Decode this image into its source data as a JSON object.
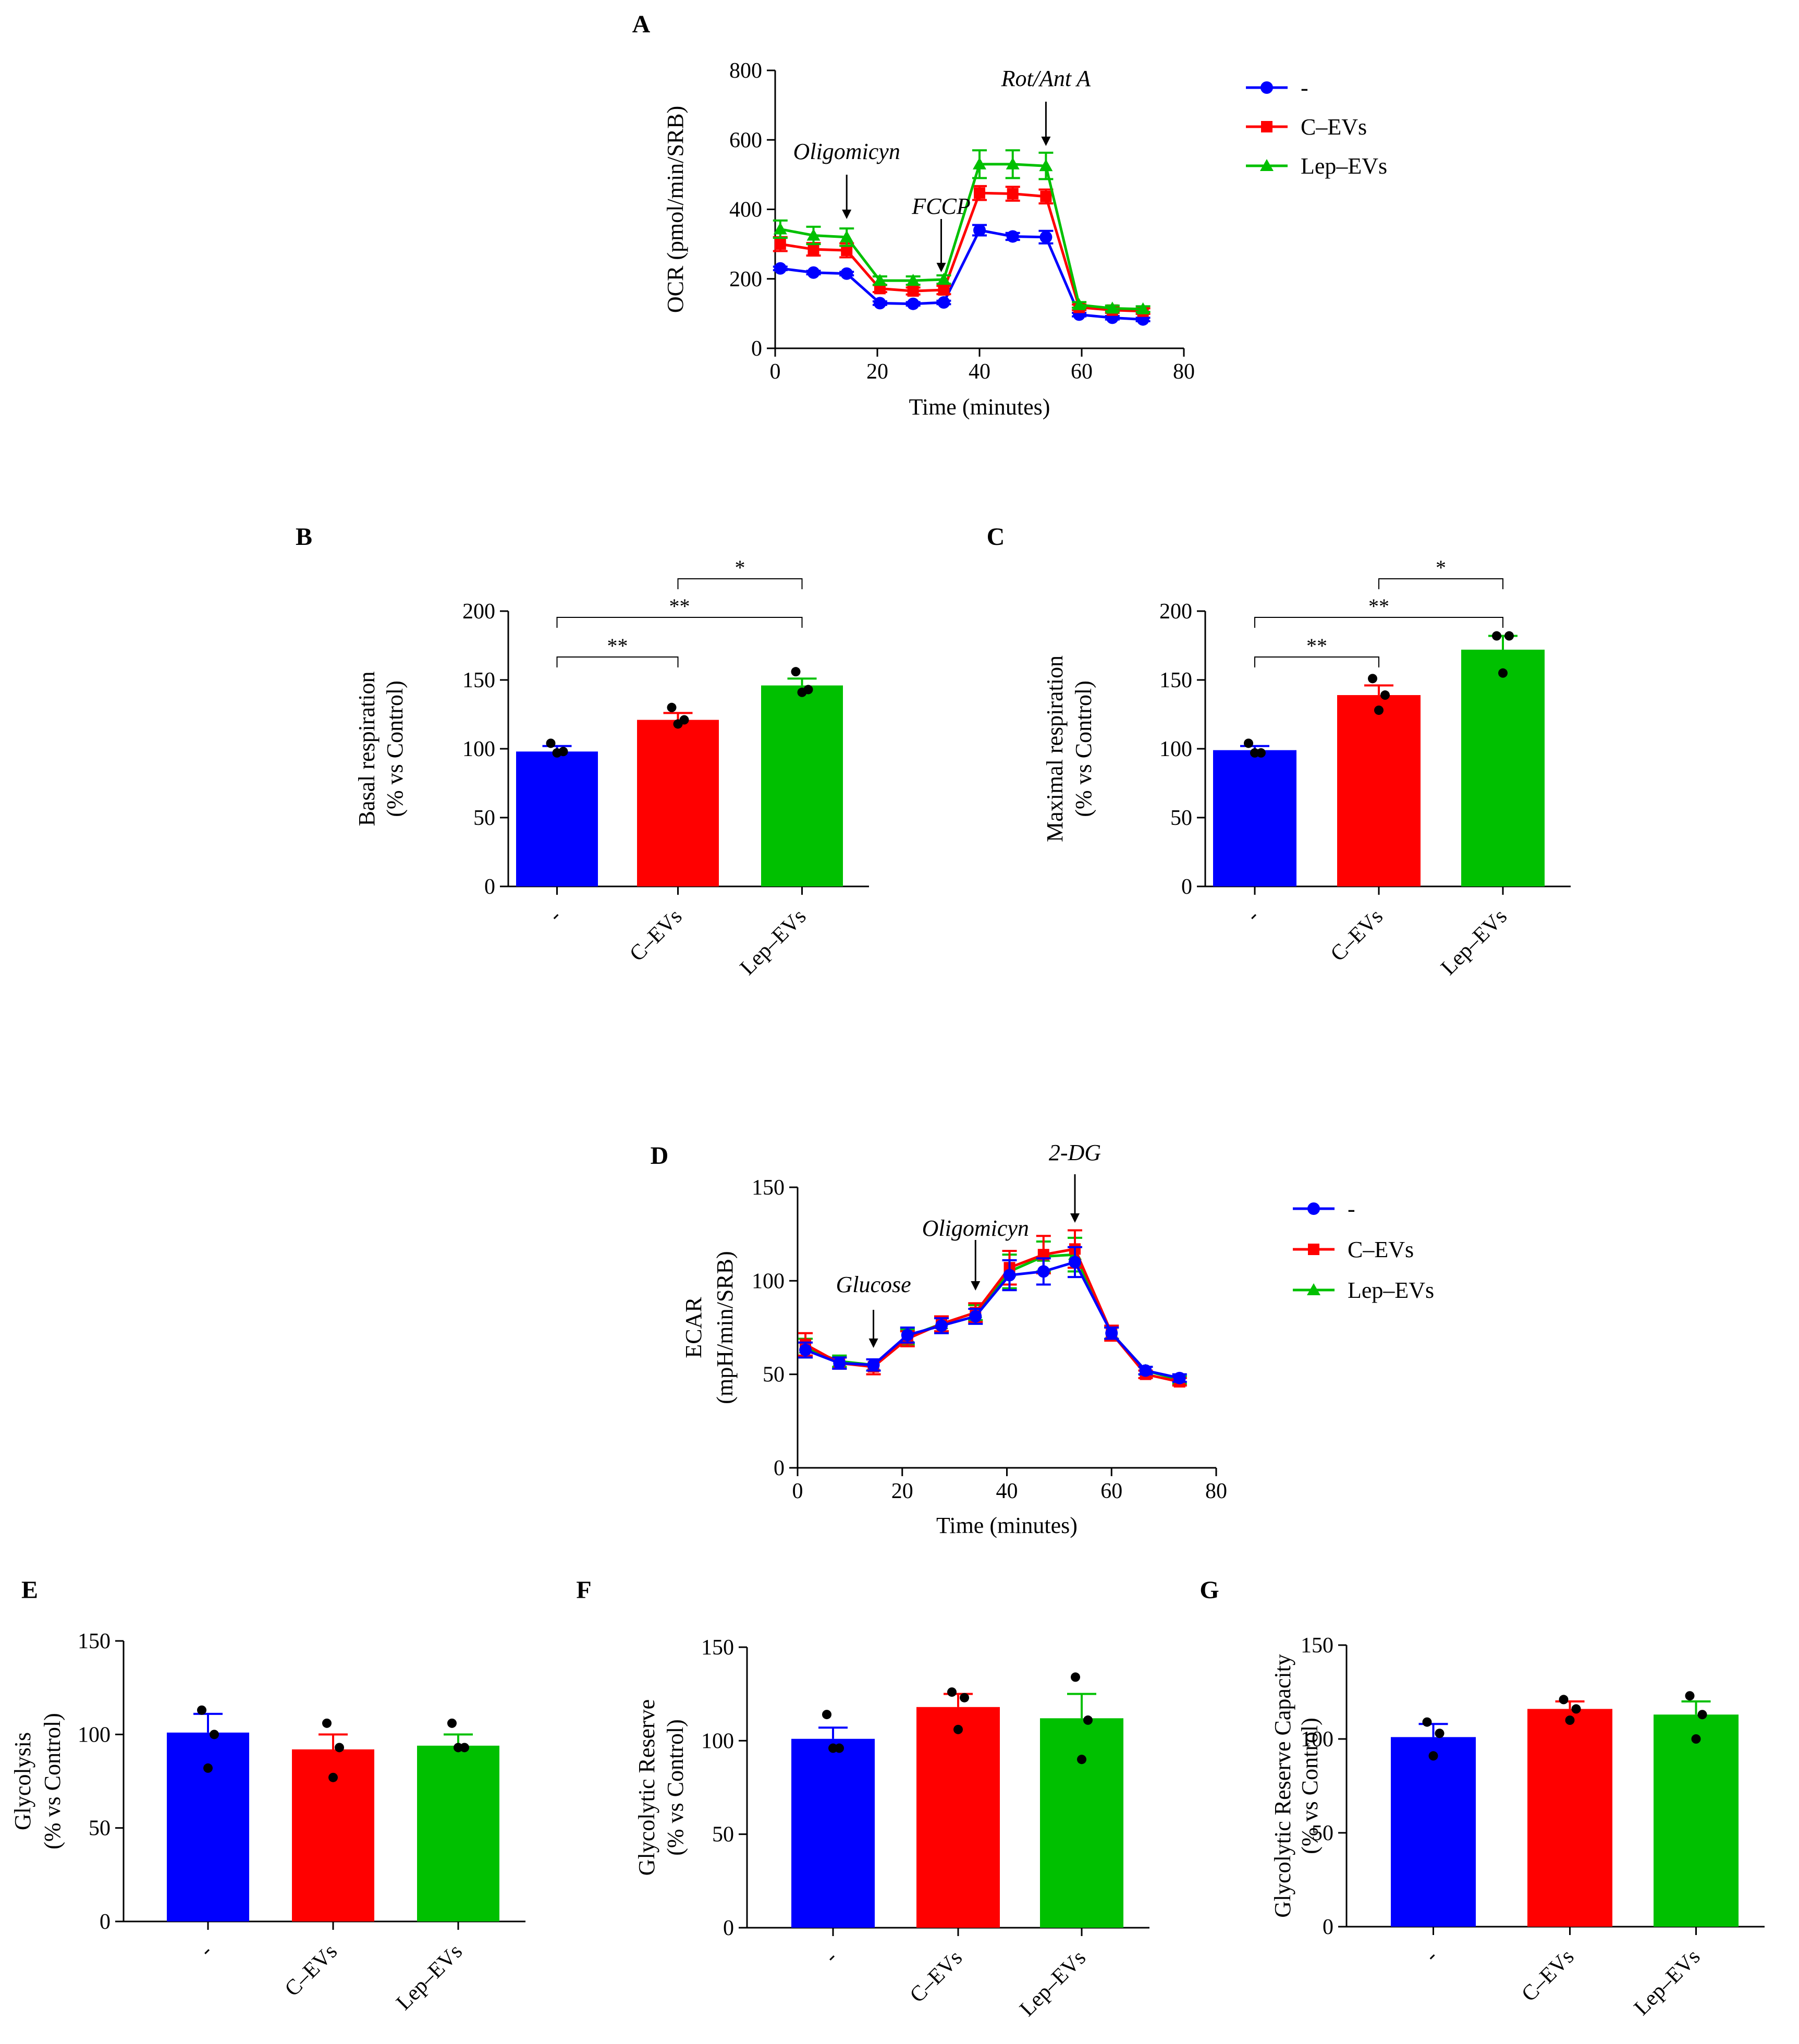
{
  "colors": {
    "control": "#0000FF",
    "cevs": "#FF0000",
    "lepevs": "#00C000",
    "axis": "#000000"
  },
  "chart_data": [
    {
      "id": "A",
      "panel_label": "A",
      "type": "line",
      "xlabel": "Time (minutes)",
      "ylabel": "OCR (pmol/min/SRB)",
      "xlim": [
        0,
        80
      ],
      "ylim": [
        0,
        800
      ],
      "xticks": [
        0,
        20,
        40,
        60,
        80
      ],
      "yticks": [
        0,
        200,
        400,
        600,
        800
      ],
      "x": [
        1,
        7.5,
        14,
        20.5,
        27,
        33,
        40,
        46.5,
        53,
        59.5,
        66,
        72
      ],
      "legend": [
        "-",
        "C–EVs",
        "Lep–EVs"
      ],
      "legend_position": "right",
      "series": [
        {
          "name": "-",
          "color_key": "control",
          "marker": "circle",
          "values": [
            230,
            218,
            215,
            130,
            128,
            132,
            340,
            322,
            320,
            97,
            88,
            83
          ],
          "errors": [
            5,
            5,
            5,
            5,
            5,
            5,
            15,
            10,
            18,
            5,
            5,
            5
          ]
        },
        {
          "name": "C–EVs",
          "color_key": "cevs",
          "marker": "square",
          "values": [
            300,
            285,
            282,
            172,
            165,
            168,
            447,
            445,
            437,
            118,
            110,
            107
          ],
          "errors": [
            20,
            18,
            20,
            10,
            10,
            12,
            20,
            20,
            20,
            8,
            8,
            8
          ]
        },
        {
          "name": "Lep–EVs",
          "color_key": "lepevs",
          "marker": "triangle",
          "values": [
            343,
            325,
            320,
            195,
            195,
            198,
            530,
            530,
            525,
            125,
            115,
            113
          ],
          "errors": [
            25,
            25,
            25,
            12,
            12,
            12,
            40,
            40,
            38,
            8,
            8,
            8
          ]
        }
      ],
      "annotations": [
        {
          "text": "Oligomicyn",
          "x": 14
        },
        {
          "text": "FCCP",
          "x": 32.5
        },
        {
          "text": "Rot/Ant A",
          "x": 53
        }
      ]
    },
    {
      "id": "B",
      "panel_label": "B",
      "type": "bar",
      "ylabel_lines": [
        "Basal respiration",
        "(% vs Control)"
      ],
      "categories": [
        "-",
        "C–EVs",
        "Lep–EVs"
      ],
      "ylim": [
        0,
        200
      ],
      "yticks": [
        0,
        50,
        100,
        150,
        200
      ],
      "values": [
        98,
        121,
        146
      ],
      "errors": [
        4,
        5,
        5
      ],
      "points": [
        [
          104,
          98,
          97
        ],
        [
          130,
          121,
          118
        ],
        [
          156,
          143,
          141
        ]
      ],
      "significance": [
        {
          "from": 0,
          "to": 1,
          "label": "**",
          "level": 0
        },
        {
          "from": 0,
          "to": 2,
          "label": "**",
          "level": 1
        },
        {
          "from": 1,
          "to": 2,
          "label": "*",
          "level": 2
        }
      ]
    },
    {
      "id": "C",
      "panel_label": "C",
      "type": "bar",
      "ylabel_lines": [
        "Maximal respiration",
        "(% vs Control)"
      ],
      "categories": [
        "-",
        "C–EVs",
        "Lep–EVs"
      ],
      "ylim": [
        0,
        200
      ],
      "yticks": [
        0,
        50,
        100,
        150,
        200
      ],
      "values": [
        99,
        139,
        172
      ],
      "errors": [
        3,
        7,
        10
      ],
      "points": [
        [
          104,
          97,
          97
        ],
        [
          151,
          139,
          128
        ],
        [
          182,
          182,
          155
        ]
      ],
      "significance": [
        {
          "from": 0,
          "to": 1,
          "label": "**",
          "level": 0
        },
        {
          "from": 0,
          "to": 2,
          "label": "**",
          "level": 1
        },
        {
          "from": 1,
          "to": 2,
          "label": "*",
          "level": 2
        }
      ]
    },
    {
      "id": "D",
      "panel_label": "D",
      "type": "line",
      "xlabel": "Time (minutes)",
      "ylabel_lines": [
        "ECAR",
        "(mpH/min/SRB)"
      ],
      "xlim": [
        0,
        80
      ],
      "ylim": [
        0,
        150
      ],
      "xticks": [
        0,
        20,
        40,
        60,
        80
      ],
      "yticks": [
        0,
        50,
        100,
        150
      ],
      "x": [
        1.5,
        8,
        14.5,
        21,
        27.5,
        34,
        40.5,
        47,
        53,
        60,
        66.5,
        73
      ],
      "legend": [
        "-",
        "C–EVs",
        "Lep–EVs"
      ],
      "legend_position": "right",
      "series": [
        {
          "name": "Lep–EVs",
          "color_key": "lepevs",
          "marker": "triangle",
          "values": [
            64,
            57,
            55,
            70,
            77,
            83,
            105,
            113,
            114,
            72,
            52,
            47
          ],
          "errors": [
            5,
            3,
            3,
            4,
            4,
            4,
            9,
            8,
            9,
            3,
            2,
            2
          ]
        },
        {
          "name": "C–EVs",
          "color_key": "cevs",
          "marker": "square",
          "values": [
            66,
            56,
            54,
            69,
            77,
            83,
            107,
            114,
            117,
            72,
            50,
            46
          ],
          "errors": [
            6,
            3,
            4,
            4,
            4,
            5,
            9,
            10,
            10,
            4,
            2,
            2
          ]
        },
        {
          "name": "-",
          "color_key": "control",
          "marker": "circle",
          "values": [
            63,
            56,
            55,
            71,
            76,
            81,
            103,
            105,
            110,
            72,
            52,
            48
          ],
          "errors": [
            4,
            3,
            3,
            4,
            4,
            4,
            8,
            7,
            8,
            3,
            2,
            2
          ]
        }
      ],
      "annotations": [
        {
          "text": "Glucose",
          "x": 14.5
        },
        {
          "text": "Oligomicyn",
          "x": 34
        },
        {
          "text": "2-DG",
          "x": 53
        }
      ]
    },
    {
      "id": "E",
      "panel_label": "E",
      "type": "bar",
      "ylabel_lines": [
        "Glycolysis",
        "(% vs Control)"
      ],
      "categories": [
        "-",
        "C–EVs",
        "Lep–EVs"
      ],
      "ylim": [
        0,
        150
      ],
      "yticks": [
        0,
        50,
        100,
        150
      ],
      "values": [
        101,
        92,
        94
      ],
      "errors": [
        10,
        8,
        6
      ],
      "points": [
        [
          113,
          100,
          82
        ],
        [
          106,
          93,
          77
        ],
        [
          106,
          93,
          93
        ]
      ],
      "significance": []
    },
    {
      "id": "F",
      "panel_label": "F",
      "type": "bar",
      "ylabel_lines": [
        "Glycolytic Reserve",
        "(% vs Control)"
      ],
      "categories": [
        "-",
        "C–EVs",
        "Lep–EVs"
      ],
      "ylim": [
        0,
        150
      ],
      "yticks": [
        0,
        50,
        100,
        150
      ],
      "values": [
        101,
        118,
        112
      ],
      "errors": [
        6,
        7,
        13
      ],
      "points": [
        [
          114,
          96,
          96
        ],
        [
          126,
          123,
          106
        ],
        [
          134,
          111,
          90
        ]
      ],
      "significance": []
    },
    {
      "id": "G",
      "panel_label": "G",
      "type": "bar",
      "ylabel_lines": [
        "Glycolytic Reserve Capacity",
        "(% vs Control)"
      ],
      "categories": [
        "-",
        "C–EVs",
        "Lep–EVs"
      ],
      "ylim": [
        0,
        150
      ],
      "yticks": [
        0,
        50,
        100,
        150
      ],
      "values": [
        101,
        116,
        113
      ],
      "errors": [
        7,
        4,
        7
      ],
      "points": [
        [
          109,
          103,
          91
        ],
        [
          121,
          116,
          110
        ],
        [
          123,
          113,
          100
        ]
      ],
      "significance": []
    }
  ]
}
